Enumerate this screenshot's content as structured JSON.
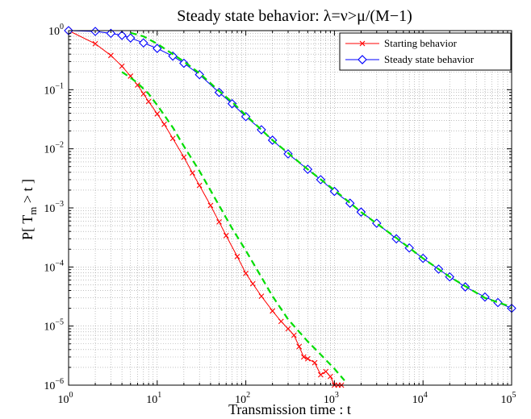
{
  "chart_data": {
    "type": "line",
    "title": "Steady state behavior: λ=ν>μ/(M−1)",
    "xlabel": "Transmission time : t",
    "ylabel": {
      "prefix": "P[ T",
      "sub": "m",
      "suffix": " > t ]"
    },
    "xscale": "log",
    "yscale": "log",
    "xlim": [
      1,
      100000
    ],
    "ylim": [
      1e-06,
      1
    ],
    "grid": true,
    "legend_position": "top-right",
    "x_ticks": [
      {
        "base": "10",
        "exp": "0"
      },
      {
        "base": "10",
        "exp": "1"
      },
      {
        "base": "10",
        "exp": "2"
      },
      {
        "base": "10",
        "exp": "3"
      },
      {
        "base": "10",
        "exp": "4"
      },
      {
        "base": "10",
        "exp": "5"
      }
    ],
    "y_ticks": [
      {
        "base": "10",
        "exp": "0"
      },
      {
        "base": "10",
        "exp": "−1"
      },
      {
        "base": "10",
        "exp": "−2"
      },
      {
        "base": "10",
        "exp": "−3"
      },
      {
        "base": "10",
        "exp": "−4"
      },
      {
        "base": "10",
        "exp": "−5"
      },
      {
        "base": "10",
        "exp": "−6"
      }
    ],
    "series": [
      {
        "name": "Starting behavior",
        "color": "#ff0000",
        "marker": "x",
        "x": [
          1,
          2,
          3,
          4,
          5,
          6,
          7,
          8,
          10,
          12,
          15,
          20,
          25,
          30,
          40,
          50,
          60,
          80,
          100,
          120,
          150,
          200,
          250,
          300,
          350,
          400,
          450,
          500,
          600,
          700,
          800,
          900,
          1000,
          1100,
          1200
        ],
        "y": [
          1,
          0.6,
          0.38,
          0.25,
          0.17,
          0.12,
          0.085,
          0.063,
          0.039,
          0.026,
          0.015,
          0.0072,
          0.0039,
          0.0024,
          0.0011,
          0.00058,
          0.00034,
          0.00015,
          7.8e-05,
          5.2e-05,
          3.2e-05,
          1.8e-05,
          1.2e-05,
          9e-06,
          7e-06,
          4.5e-06,
          3e-06,
          2.8e-06,
          2.4e-06,
          1.5e-06,
          1.7e-06,
          1.4e-06,
          1e-06,
          1e-06,
          1e-06
        ]
      },
      {
        "name": "Steady state behavior",
        "color": "#0000ff",
        "marker": "diamond",
        "x": [
          1,
          2,
          3,
          4,
          5,
          7,
          10,
          15,
          20,
          30,
          50,
          70,
          100,
          150,
          200,
          300,
          500,
          700,
          1000,
          1500,
          2000,
          3000,
          5000,
          7000,
          10000,
          15000,
          20000,
          30000,
          50000,
          70000,
          100000
        ],
        "y": [
          1,
          0.97,
          0.9,
          0.83,
          0.75,
          0.62,
          0.5,
          0.37,
          0.28,
          0.18,
          0.09,
          0.058,
          0.035,
          0.021,
          0.014,
          0.0082,
          0.0045,
          0.003,
          0.0019,
          0.0012,
          0.00085,
          0.00055,
          0.0003,
          0.00021,
          0.00014,
          9.2e-05,
          6.8e-05,
          4.6e-05,
          3.1e-05,
          2.5e-05,
          2e-05
        ]
      },
      {
        "name": "",
        "color": "#00dd00",
        "dashed": true,
        "x": [
          4,
          5,
          6,
          8,
          10,
          15,
          20,
          30,
          50,
          70,
          100,
          200,
          300,
          500,
          700,
          1000,
          1300
        ],
        "y": [
          0.2,
          0.16,
          0.13,
          0.085,
          0.055,
          0.023,
          0.011,
          0.0042,
          0.0011,
          0.00045,
          0.00019,
          3.2e-05,
          1.3e-05,
          5.5e-06,
          3.3e-06,
          1.9e-06,
          1.2e-06
        ]
      },
      {
        "name": "",
        "color": "#00dd00",
        "dashed": true,
        "x": [
          5,
          7,
          10,
          15,
          20,
          30,
          50,
          70,
          100,
          200,
          500,
          1000,
          2000,
          5000,
          10000,
          20000,
          50000,
          100000
        ],
        "y": [
          0.92,
          0.8,
          0.6,
          0.4,
          0.3,
          0.19,
          0.095,
          0.062,
          0.037,
          0.014,
          0.0045,
          0.002,
          0.00085,
          0.00031,
          0.00014,
          6.8e-05,
          3e-05,
          2.1e-05
        ]
      }
    ]
  }
}
